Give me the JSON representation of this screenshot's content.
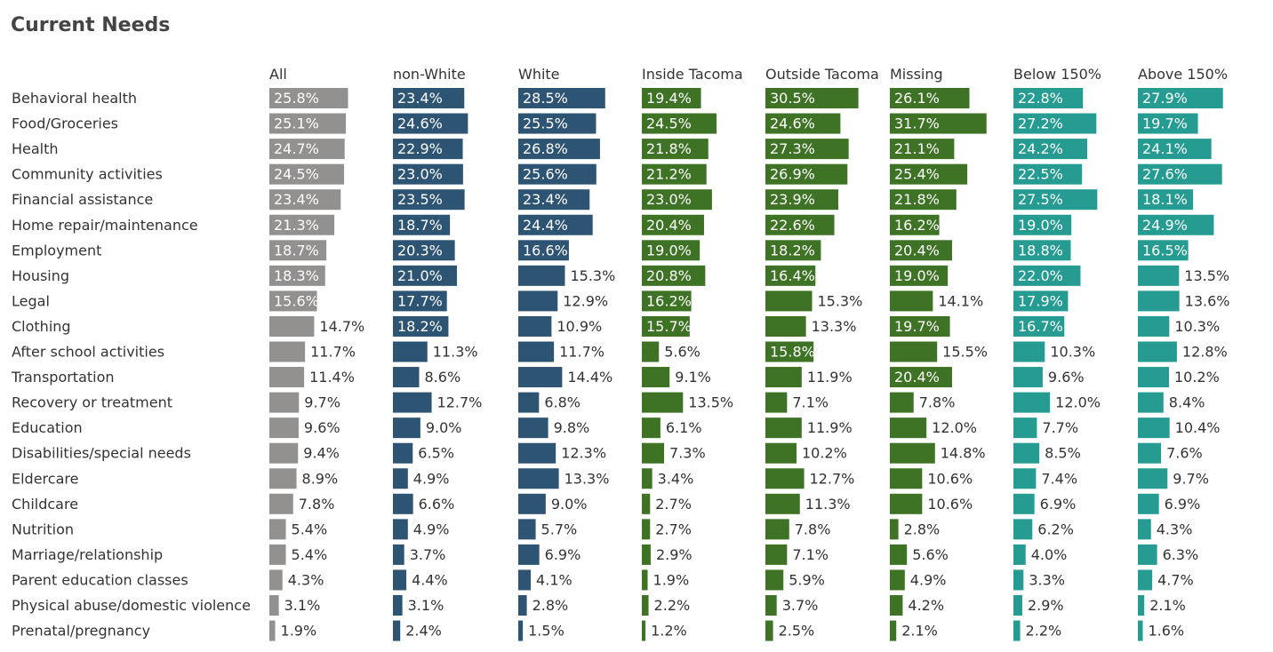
{
  "chart_data": {
    "type": "bar",
    "orientation": "horizontal",
    "title": "Current Needs",
    "categories": [
      "Behavioral health",
      "Food/Groceries",
      "Health",
      "Community activities",
      "Financial assistance",
      "Home repair/maintenance",
      "Employment",
      "Housing",
      "Legal",
      "Clothing",
      "After school activities",
      "Transportation",
      "Recovery or treatment",
      "Education",
      "Disabilities/special needs",
      "Eldercare",
      "Childcare",
      "Nutrition",
      "Marriage/relationship",
      "Parent education classes",
      "Physical abuse/domestic violence",
      "Prenatal/pregnancy"
    ],
    "series": [
      {
        "name": "All",
        "color": "#939090",
        "values": [
          25.8,
          25.1,
          24.7,
          24.5,
          23.4,
          21.3,
          18.7,
          18.3,
          15.6,
          14.7,
          11.7,
          11.4,
          9.7,
          9.6,
          9.4,
          8.9,
          7.8,
          5.4,
          5.4,
          4.3,
          3.1,
          1.9
        ]
      },
      {
        "name": "non-White",
        "color": "#2e5474",
        "values": [
          23.4,
          24.6,
          22.9,
          23.0,
          23.5,
          18.7,
          20.3,
          21.0,
          17.7,
          18.2,
          11.3,
          8.6,
          12.7,
          9.0,
          6.5,
          4.9,
          6.6,
          4.9,
          3.7,
          4.4,
          3.1,
          2.4
        ]
      },
      {
        "name": "White",
        "color": "#2e5474",
        "values": [
          28.5,
          25.5,
          26.8,
          25.6,
          23.4,
          24.4,
          16.6,
          15.3,
          12.9,
          10.9,
          11.7,
          14.4,
          6.8,
          9.8,
          12.3,
          13.3,
          9.0,
          5.7,
          6.9,
          4.1,
          2.8,
          1.5
        ]
      },
      {
        "name": "Inside Tacoma",
        "color": "#3e7225",
        "values": [
          19.4,
          24.5,
          21.8,
          21.2,
          23.0,
          20.4,
          19.0,
          20.8,
          16.2,
          15.7,
          5.6,
          9.1,
          13.5,
          6.1,
          7.3,
          3.4,
          2.7,
          2.7,
          2.9,
          1.9,
          2.2,
          1.2
        ]
      },
      {
        "name": "Outside Tacoma",
        "color": "#3e7225",
        "values": [
          30.5,
          24.6,
          27.3,
          26.9,
          23.9,
          22.6,
          18.2,
          16.4,
          15.3,
          13.3,
          15.8,
          11.9,
          7.1,
          11.9,
          10.2,
          12.7,
          11.3,
          7.8,
          7.1,
          5.9,
          3.7,
          2.5
        ]
      },
      {
        "name": "Missing",
        "color": "#3e7225",
        "values": [
          26.1,
          31.7,
          21.1,
          25.4,
          21.8,
          16.2,
          20.4,
          19.0,
          14.1,
          19.7,
          15.5,
          20.4,
          7.8,
          12.0,
          14.8,
          10.6,
          10.6,
          2.8,
          5.6,
          4.9,
          4.2,
          2.1
        ]
      },
      {
        "name": "Below 150%",
        "color": "#259b92",
        "values": [
          22.8,
          27.2,
          24.2,
          22.5,
          27.5,
          19.0,
          18.8,
          22.0,
          17.9,
          16.7,
          10.3,
          9.6,
          12.0,
          7.7,
          8.5,
          7.4,
          6.9,
          6.2,
          4.0,
          3.3,
          2.9,
          2.2
        ]
      },
      {
        "name": "Above 150%",
        "color": "#259b92",
        "values": [
          27.9,
          19.7,
          24.1,
          27.6,
          18.1,
          24.9,
          16.5,
          13.5,
          13.6,
          10.3,
          12.8,
          10.2,
          8.4,
          10.4,
          7.6,
          9.7,
          6.9,
          4.3,
          6.3,
          4.7,
          2.1,
          1.6
        ]
      }
    ],
    "value_suffix": "%",
    "xlim": [
      0,
      32
    ],
    "grid": false,
    "legend": "none"
  }
}
